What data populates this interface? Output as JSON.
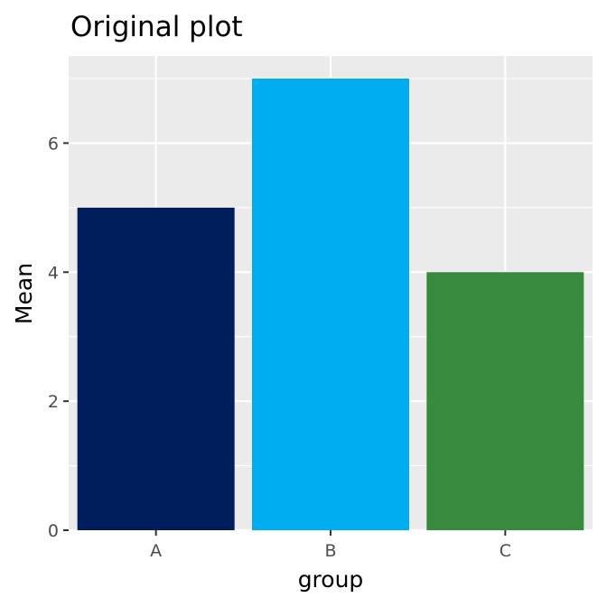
{
  "chart_data": {
    "type": "bar",
    "title": "Original plot",
    "xlabel": "group",
    "ylabel": "Mean",
    "categories": [
      "A",
      "B",
      "C"
    ],
    "values": [
      5,
      7,
      4
    ],
    "colors": [
      "#001E5C",
      "#00AEEF",
      "#388A3E"
    ],
    "ylim": [
      0,
      7.35
    ],
    "yticks": [
      0,
      2,
      4,
      6
    ],
    "grid": true,
    "panel_background": "#EBEBEB",
    "gridline_color": "#FFFFFF",
    "legend": "none"
  }
}
